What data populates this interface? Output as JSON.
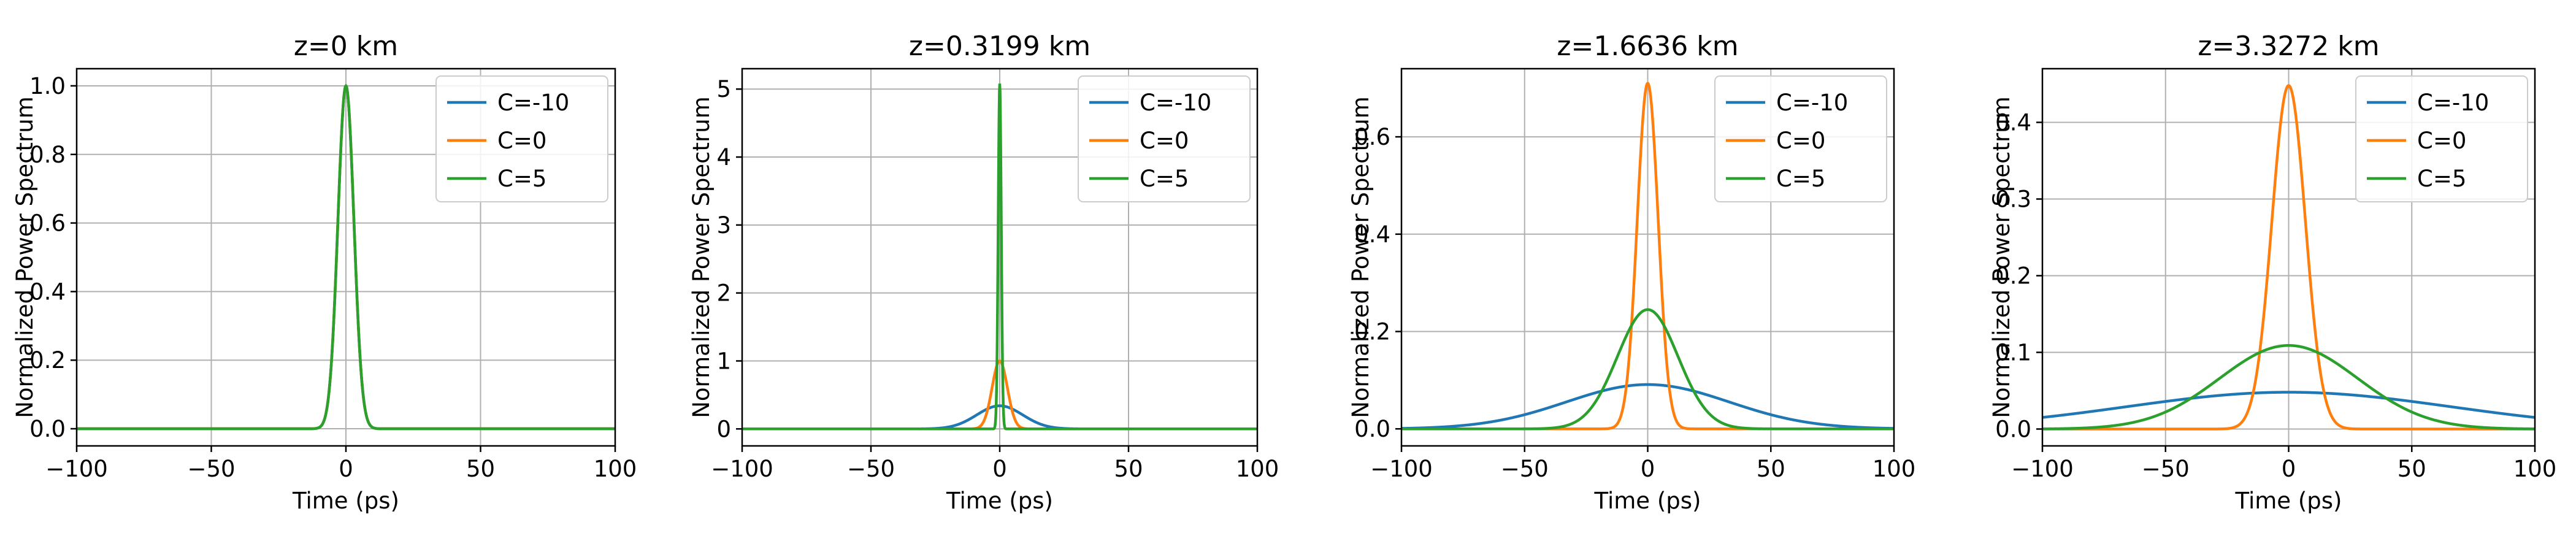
{
  "chart_data": [
    {
      "type": "line",
      "title": "z=0 km",
      "xlabel": "Time (ps)",
      "ylabel": "Normalized Power Spectrum",
      "xlim": [
        -100,
        100
      ],
      "ylim": [
        -0.05,
        1.05
      ],
      "xticks": [
        -100,
        -50,
        0,
        50,
        100
      ],
      "yticks": [
        0.0,
        0.2,
        0.4,
        0.6,
        0.8,
        1.0
      ],
      "ytick_labels": [
        "0.0",
        "0.2",
        "0.4",
        "0.6",
        "0.8",
        "1.0"
      ],
      "grid": true,
      "legend": "top-right",
      "series": [
        {
          "name": "C=-10",
          "color": "#1f77b4",
          "peak": 1.0,
          "fwhm": 7.0
        },
        {
          "name": "C=0",
          "color": "#ff7f0e",
          "peak": 1.0,
          "fwhm": 7.0
        },
        {
          "name": "C=5",
          "color": "#2ca02c",
          "peak": 1.0,
          "fwhm": 7.0
        }
      ]
    },
    {
      "type": "line",
      "title": "z=0.3199 km",
      "xlabel": "Time (ps)",
      "ylabel": "Normalized Power Spectrum",
      "xlim": [
        -100,
        100
      ],
      "ylim": [
        -0.25,
        5.3
      ],
      "xticks": [
        -100,
        -50,
        0,
        50,
        100
      ],
      "yticks": [
        0,
        1,
        2,
        3,
        4,
        5
      ],
      "ytick_labels": [
        "0",
        "1",
        "2",
        "3",
        "4",
        "5"
      ],
      "grid": true,
      "legend": "top-right",
      "series": [
        {
          "name": "C=-10",
          "color": "#1f77b4",
          "peak": 0.34,
          "fwhm": 21.0
        },
        {
          "name": "C=0",
          "color": "#ff7f0e",
          "peak": 1.0,
          "fwhm": 7.0
        },
        {
          "name": "C=5",
          "color": "#2ca02c",
          "peak": 5.08,
          "fwhm": 1.4
        }
      ]
    },
    {
      "type": "line",
      "title": "z=1.6636 km",
      "xlabel": "Time (ps)",
      "ylabel": "Normalized Power Spectrum",
      "xlim": [
        -100,
        100
      ],
      "ylim": [
        -0.035,
        0.74
      ],
      "xticks": [
        -100,
        -50,
        0,
        50,
        100
      ],
      "yticks": [
        0.0,
        0.2,
        0.4,
        0.6
      ],
      "ytick_labels": [
        "0.0",
        "0.2",
        "0.4",
        "0.6"
      ],
      "grid": true,
      "legend": "top-right",
      "series": [
        {
          "name": "C=-10",
          "color": "#1f77b4",
          "peak": 0.091,
          "fwhm": 78.0
        },
        {
          "name": "C=0",
          "color": "#ff7f0e",
          "peak": 0.71,
          "fwhm": 10.0
        },
        {
          "name": "C=5",
          "color": "#2ca02c",
          "peak": 0.245,
          "fwhm": 29.0
        }
      ]
    },
    {
      "type": "line",
      "title": "z=3.3272 km",
      "xlabel": "Time (ps)",
      "ylabel": "Normalized Power Spectrum",
      "xlim": [
        -100,
        100
      ],
      "ylim": [
        -0.022,
        0.47
      ],
      "xticks": [
        -100,
        -50,
        0,
        50,
        100
      ],
      "yticks": [
        0.0,
        0.1,
        0.2,
        0.3,
        0.4
      ],
      "ytick_labels": [
        "0.0",
        "0.1",
        "0.2",
        "0.3",
        "0.4"
      ],
      "grid": true,
      "legend": "top-right",
      "series": [
        {
          "name": "C=-10",
          "color": "#1f77b4",
          "peak": 0.048,
          "fwhm": 155.0
        },
        {
          "name": "C=0",
          "color": "#ff7f0e",
          "peak": 0.448,
          "fwhm": 16.0
        },
        {
          "name": "C=5",
          "color": "#2ca02c",
          "peak": 0.109,
          "fwhm": 66.0
        }
      ]
    }
  ]
}
